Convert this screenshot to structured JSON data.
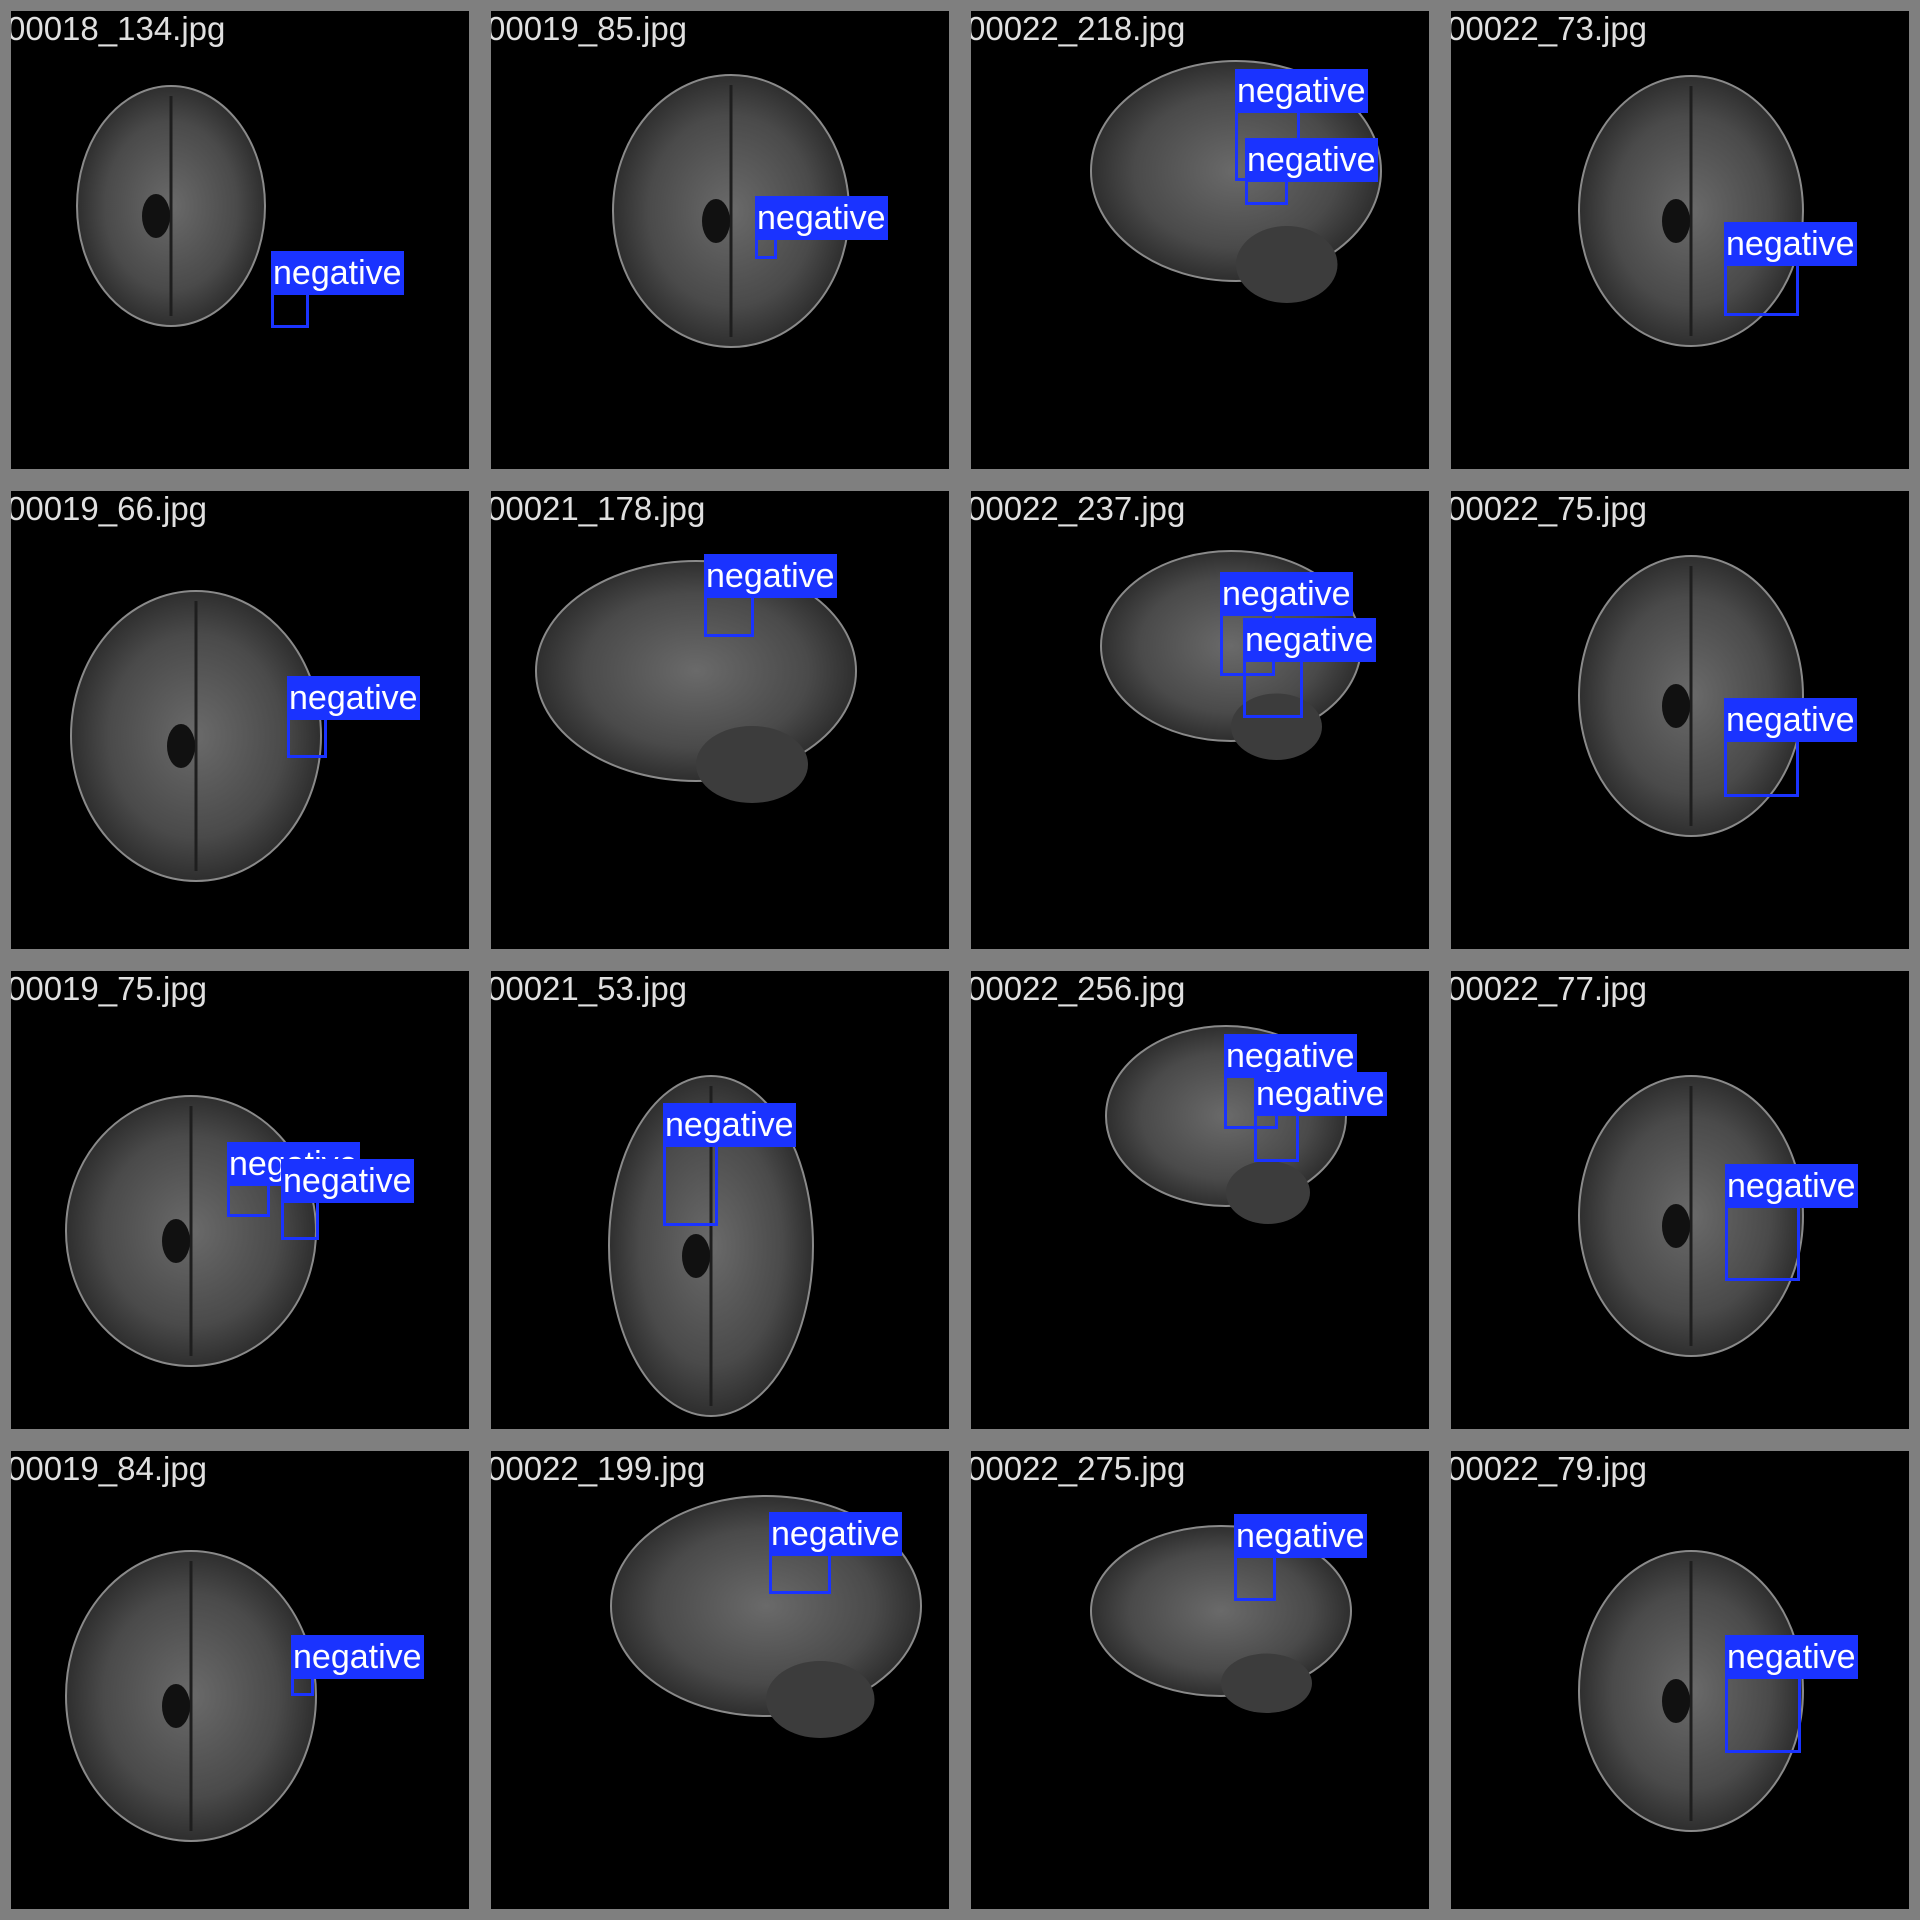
{
  "colors": {
    "detection": "#1a33ff",
    "frame": "#7f7f7f",
    "background": "#000000",
    "filename_text": "#e0e0e0"
  },
  "tiles": [
    {
      "filename": "00018_134.jpg",
      "view": "axial",
      "detections": [
        {
          "label": "negative"
        }
      ]
    },
    {
      "filename": "00019_85.jpg",
      "view": "axial",
      "detections": [
        {
          "label": "negative"
        }
      ]
    },
    {
      "filename": "00022_218.jpg",
      "view": "sagittal",
      "detections": [
        {
          "label": "negative"
        },
        {
          "label": "negative"
        }
      ]
    },
    {
      "filename": "00022_73.jpg",
      "view": "axial",
      "detections": [
        {
          "label": "negative"
        }
      ]
    },
    {
      "filename": "00019_66.jpg",
      "view": "axial",
      "detections": [
        {
          "label": "negative"
        }
      ]
    },
    {
      "filename": "00021_178.jpg",
      "view": "sagittal",
      "detections": [
        {
          "label": "negative"
        }
      ]
    },
    {
      "filename": "00022_237.jpg",
      "view": "sagittal",
      "detections": [
        {
          "label": "negative"
        },
        {
          "label": "negative"
        }
      ]
    },
    {
      "filename": "00022_75.jpg",
      "view": "axial",
      "detections": [
        {
          "label": "negative"
        }
      ]
    },
    {
      "filename": "00019_75.jpg",
      "view": "axial",
      "detections": [
        {
          "label": "negative"
        },
        {
          "label": "negative"
        }
      ]
    },
    {
      "filename": "00021_53.jpg",
      "view": "axial",
      "detections": [
        {
          "label": "negative"
        }
      ]
    },
    {
      "filename": "00022_256.jpg",
      "view": "sagittal",
      "detections": [
        {
          "label": "negative"
        },
        {
          "label": "negative"
        }
      ]
    },
    {
      "filename": "00022_77.jpg",
      "view": "axial",
      "detections": [
        {
          "label": "negative"
        }
      ]
    },
    {
      "filename": "00019_84.jpg",
      "view": "axial",
      "detections": [
        {
          "label": "negative"
        }
      ]
    },
    {
      "filename": "00022_199.jpg",
      "view": "sagittal",
      "detections": [
        {
          "label": "negative"
        }
      ]
    },
    {
      "filename": "00022_275.jpg",
      "view": "sagittal",
      "detections": [
        {
          "label": "negative"
        }
      ]
    },
    {
      "filename": "00022_79.jpg",
      "view": "axial",
      "detections": [
        {
          "label": "negative"
        }
      ]
    }
  ]
}
